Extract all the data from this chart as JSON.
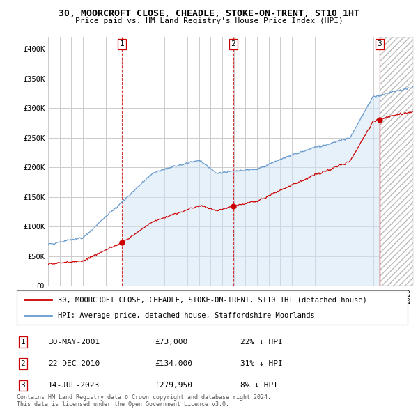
{
  "title": "30, MOORCROFT CLOSE, CHEADLE, STOKE-ON-TRENT, ST10 1HT",
  "subtitle": "Price paid vs. HM Land Registry's House Price Index (HPI)",
  "ylim": [
    0,
    420000
  ],
  "yticks": [
    0,
    50000,
    100000,
    150000,
    200000,
    250000,
    300000,
    350000,
    400000
  ],
  "ytick_labels": [
    "£0",
    "£50K",
    "£100K",
    "£150K",
    "£200K",
    "£250K",
    "£300K",
    "£350K",
    "£400K"
  ],
  "t1_year": 2001.37,
  "t2_year": 2010.96,
  "t3_year": 2023.54,
  "t1_price": 73000,
  "t2_price": 134000,
  "t3_price": 279950,
  "legend_property_label": "30, MOORCROFT CLOSE, CHEADLE, STOKE-ON-TRENT, ST10 1HT (detached house)",
  "legend_hpi_label": "HPI: Average price, detached house, Staffordshire Moorlands",
  "footer_line1": "Contains HM Land Registry data © Crown copyright and database right 2024.",
  "footer_line2": "This data is licensed under the Open Government Licence v3.0.",
  "property_color": "#cc0000",
  "hpi_color": "#6699cc",
  "hpi_fill_color": "#d0e4f7",
  "vline_color": "#cc0000",
  "background_color": "#ffffff",
  "grid_color": "#cccccc",
  "table_rows": [
    [
      "1",
      "30-MAY-2001",
      "£73,000",
      "22% ↓ HPI"
    ],
    [
      "2",
      "22-DEC-2010",
      "£134,000",
      "31% ↓ HPI"
    ],
    [
      "3",
      "14-JUL-2023",
      "£279,950",
      "8% ↓ HPI"
    ]
  ],
  "xlim_start": 1995.0,
  "xlim_end": 2026.5
}
